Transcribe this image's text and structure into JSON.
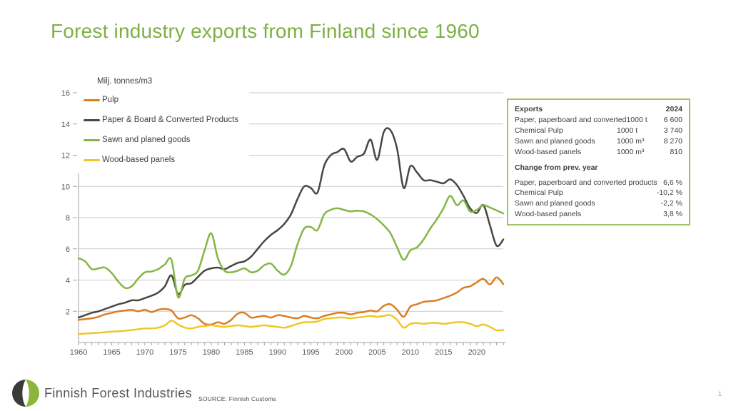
{
  "slide": {
    "title": "Forest industry exports from Finland since 1960",
    "page_number": "1",
    "footer": {
      "brand": "Finnish Forest Industries",
      "source": "SOURCE: Finnish Customs"
    },
    "colors": {
      "title_green": "#7eb043",
      "table_border_green": "#a3c169",
      "logo_dark": "#3b3b39",
      "logo_green": "#8db53c"
    }
  },
  "chart_data": {
    "type": "line",
    "unit_label": "Milj. tonnes/m3",
    "x_start": 1960,
    "x_end": 2024,
    "x_tick_labels": [
      1960,
      1965,
      1970,
      1975,
      1980,
      1985,
      1990,
      1995,
      2000,
      2005,
      2010,
      2015,
      2020
    ],
    "y_ticks": [
      2,
      4,
      6,
      8,
      10,
      12,
      14,
      16
    ],
    "ylim": [
      0,
      16
    ],
    "grid": true,
    "legend_position": "top-left",
    "series": [
      {
        "name": "Pulp",
        "color": "#dc7e23",
        "values": [
          1.45,
          1.5,
          1.55,
          1.65,
          1.8,
          1.9,
          2.0,
          2.05,
          2.1,
          2.0,
          2.1,
          1.95,
          2.1,
          2.15,
          2.05,
          1.55,
          1.6,
          1.75,
          1.55,
          1.2,
          1.15,
          1.3,
          1.2,
          1.45,
          1.85,
          1.9,
          1.6,
          1.65,
          1.7,
          1.6,
          1.75,
          1.7,
          1.6,
          1.55,
          1.7,
          1.6,
          1.55,
          1.7,
          1.8,
          1.9,
          1.9,
          1.8,
          1.9,
          1.95,
          2.05,
          2.0,
          2.35,
          2.45,
          2.1,
          1.65,
          2.3,
          2.45,
          2.6,
          2.65,
          2.7,
          2.85,
          3.0,
          3.2,
          3.5,
          3.6,
          3.85,
          4.08,
          3.72,
          4.17,
          3.74
        ]
      },
      {
        "name": "Paper & Board & Converted Products",
        "color": "#474744",
        "values": [
          1.6,
          1.75,
          1.9,
          2.0,
          2.15,
          2.3,
          2.45,
          2.55,
          2.7,
          2.7,
          2.85,
          3.0,
          3.2,
          3.6,
          4.3,
          3.1,
          3.7,
          3.8,
          4.2,
          4.6,
          4.75,
          4.8,
          4.7,
          4.9,
          5.1,
          5.2,
          5.5,
          6.0,
          6.5,
          6.9,
          7.2,
          7.6,
          8.2,
          9.2,
          10.0,
          9.9,
          9.6,
          11.3,
          12.0,
          12.2,
          12.4,
          11.6,
          11.9,
          12.1,
          13.0,
          11.7,
          13.5,
          13.6,
          12.4,
          9.9,
          11.3,
          10.9,
          10.4,
          10.4,
          10.3,
          10.2,
          10.45,
          10.1,
          9.4,
          8.6,
          8.3,
          8.8,
          7.5,
          6.2,
          6.6
        ]
      },
      {
        "name": "Sawn and planed goods",
        "color": "#84b645",
        "values": [
          5.4,
          5.2,
          4.7,
          4.75,
          4.8,
          4.45,
          3.9,
          3.5,
          3.6,
          4.1,
          4.5,
          4.55,
          4.7,
          5.0,
          5.3,
          2.9,
          4.1,
          4.3,
          4.6,
          5.9,
          7.0,
          5.4,
          4.6,
          4.5,
          4.6,
          4.75,
          4.5,
          4.6,
          4.95,
          5.05,
          4.6,
          4.35,
          4.9,
          6.3,
          7.3,
          7.4,
          7.2,
          8.2,
          8.5,
          8.6,
          8.5,
          8.4,
          8.45,
          8.4,
          8.2,
          7.9,
          7.5,
          7.0,
          6.1,
          5.3,
          5.9,
          6.1,
          6.6,
          7.3,
          7.9,
          8.6,
          9.4,
          8.8,
          9.1,
          8.4,
          8.5,
          8.8,
          8.65,
          8.46,
          8.27
        ]
      },
      {
        "name": "Wood-based panels",
        "color": "#eec824",
        "values": [
          0.55,
          0.57,
          0.6,
          0.62,
          0.66,
          0.7,
          0.72,
          0.75,
          0.8,
          0.85,
          0.9,
          0.9,
          0.95,
          1.1,
          1.4,
          1.15,
          0.95,
          0.9,
          1.0,
          1.05,
          1.1,
          1.05,
          1.0,
          1.05,
          1.1,
          1.05,
          1.0,
          1.05,
          1.1,
          1.05,
          1.0,
          0.95,
          1.05,
          1.2,
          1.3,
          1.3,
          1.35,
          1.5,
          1.55,
          1.6,
          1.6,
          1.55,
          1.6,
          1.65,
          1.7,
          1.65,
          1.7,
          1.75,
          1.45,
          0.95,
          1.2,
          1.25,
          1.2,
          1.25,
          1.25,
          1.2,
          1.25,
          1.3,
          1.3,
          1.2,
          1.05,
          1.15,
          1.0,
          0.78,
          0.81
        ]
      }
    ]
  },
  "info_table": {
    "header": {
      "label": "Exports",
      "year": "2024"
    },
    "rows": [
      {
        "name": "Paper, paperboard and converted",
        "unit": "1000 t",
        "value": "6 600"
      },
      {
        "name": "Chemical Pulp",
        "unit": "1000 t",
        "value": "3 740"
      },
      {
        "name": "Sawn and planed goods",
        "unit": "1000 m³",
        "value": "8 270"
      },
      {
        "name": "Wood-based panels",
        "unit": "1000 m³",
        "value": "810"
      }
    ],
    "change_header": "Change from prev. year",
    "change_rows": [
      {
        "name": "Paper, paperboard and converted products",
        "value": "6,6 %"
      },
      {
        "name": "Chemical Pulp",
        "value": "-10,2 %"
      },
      {
        "name": "Sawn and planed goods",
        "value": "-2,2 %"
      },
      {
        "name": "Wood-based panels",
        "value": "3,8 %"
      }
    ]
  }
}
